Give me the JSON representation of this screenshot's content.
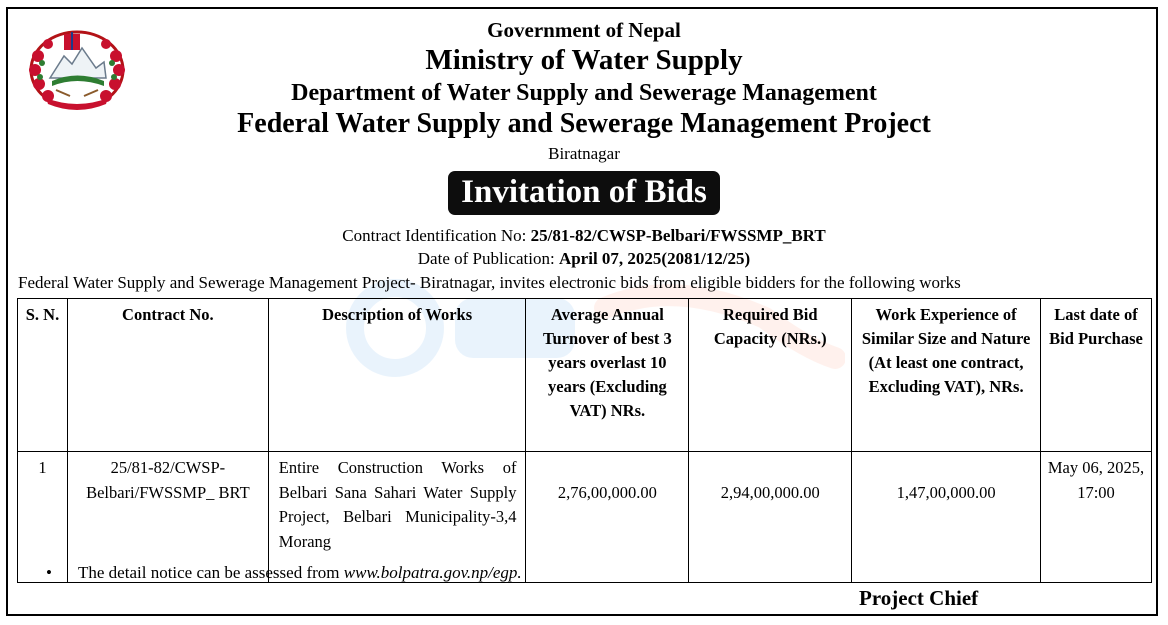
{
  "header": {
    "government": "Government of Nepal",
    "ministry": "Ministry of Water Supply",
    "department": "Department of Water Supply and Sewerage Management",
    "project": "Federal Water Supply and Sewerage Management Project",
    "location": "Biratnagar"
  },
  "notice": {
    "title": "Invitation of Bids",
    "contract_id_label": "Contract Identification No: ",
    "contract_id_value": "25/81-82/CWSP-Belbari/FWSSMP_BRT",
    "publication_label": "Date of Publication: ",
    "publication_value": "April 07, 2025(2081/12/25)",
    "intro": "Federal Water Supply and Sewerage Management Project- Biratnagar, invites electronic bids from eligible bidders for the following works"
  },
  "table": {
    "headers": {
      "sn": "S. N.",
      "contract": "Contract No.",
      "description": "Description of Works",
      "turnover": "Average Annual Turnover of best 3 years overlast 10 years (Excluding VAT) NRs.",
      "capacity": "Required Bid Capacity (NRs.)",
      "experience": "Work Experience of Similar Size and Nature (At least one contract, Excluding VAT), NRs.",
      "last_date": "Last date of Bid Purchase"
    },
    "rows": [
      {
        "sn": "1",
        "contract": "25/81-82/CWSP-Belbari/FWSSMP_ BRT",
        "description": "Entire Construction Works of Belbari Sana Sahari Water Supply Project, Belbari Municipality-3,4 Morang",
        "turnover": "2,76,00,000.00",
        "capacity": "2,94,00,000.00",
        "experience": "1,47,00,000.00",
        "last_date": "May 06, 2025, 17:00"
      }
    ]
  },
  "footer": {
    "bullet": "•",
    "note_prefix": "The detail notice can be assessed from ",
    "note_url": "www.bolpatra.gov.np/egp.",
    "signatory": "Project Chief"
  }
}
